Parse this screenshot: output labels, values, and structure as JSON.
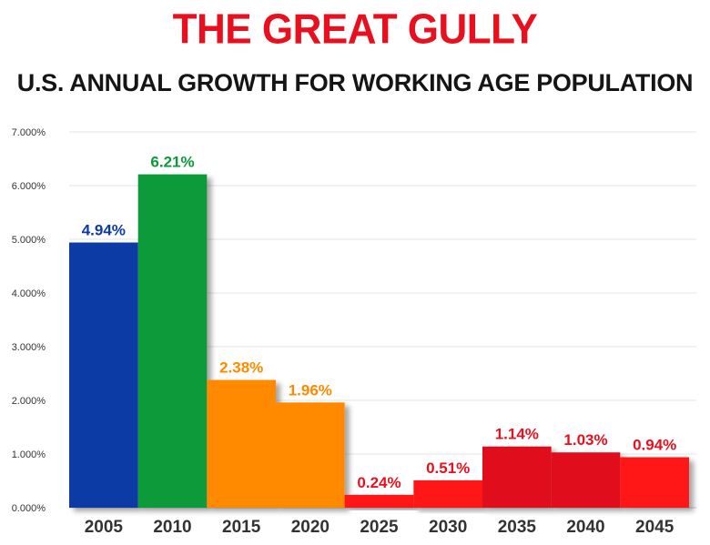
{
  "title": "THE GREAT GULLY",
  "subtitle": "U.S. ANNUAL GROWTH FOR WORKING AGE POPULATION",
  "chart_data": {
    "type": "bar",
    "title": "THE GREAT GULLY",
    "subtitle": "U.S. ANNUAL GROWTH FOR WORKING AGE POPULATION",
    "xlabel": "",
    "ylabel": "",
    "categories": [
      "2005",
      "2010",
      "2015",
      "2020",
      "2025",
      "2030",
      "2035",
      "2040",
      "2045"
    ],
    "values": [
      4.94,
      6.21,
      2.38,
      1.96,
      0.24,
      0.51,
      1.14,
      1.03,
      0.94
    ],
    "data_labels": [
      "4.94%",
      "6.21%",
      "2.38%",
      "1.96%",
      "0.24%",
      "0.51%",
      "1.14%",
      "1.03%",
      "0.94%"
    ],
    "bar_colors": [
      "#0a3aa6",
      "#0c9a3a",
      "#ff8a00",
      "#ff8a00",
      "#ff1414",
      "#ff1414",
      "#e0101e",
      "#e0101e",
      "#ff1414"
    ],
    "label_colors": [
      "#0a3aa6",
      "#0c9a3a",
      "#ff8a00",
      "#ff8a00",
      "#e8101e",
      "#e8101e",
      "#e8101e",
      "#e8101e",
      "#e8101e"
    ],
    "ylim": [
      0,
      7
    ],
    "yticks": [
      0,
      1,
      2,
      3,
      4,
      5,
      6,
      7
    ],
    "ytick_labels": [
      "0.000%",
      "1.000%",
      "2.000%",
      "3.000%",
      "4.000%",
      "5.000%",
      "6.000%",
      "7.000%"
    ],
    "grid": true,
    "legend": "none"
  }
}
